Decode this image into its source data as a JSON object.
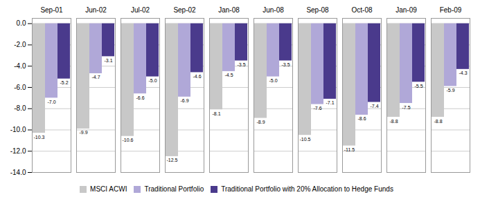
{
  "chart_data": {
    "type": "bar",
    "categories": [
      "Sep-01",
      "Jun-02",
      "Jul-02",
      "Sep-02",
      "Jan-08",
      "Jun-08",
      "Sep-08",
      "Oct-08",
      "Jan-09",
      "Feb-09"
    ],
    "series": [
      {
        "name": "MSCI ACWI",
        "color": "#c8c8c8",
        "values": [
          -10.3,
          -9.9,
          -10.6,
          -12.5,
          -8.1,
          -8.9,
          -10.5,
          -11.5,
          -8.8,
          -8.8
        ],
        "value_labels": [
          "-10.3",
          "-9.9",
          "-10.6",
          "-12.5",
          "-8.1",
          "-8.9",
          "-10.5",
          "-11.5",
          "-8.8",
          "-8.8"
        ]
      },
      {
        "name": "Traditional Portfolio",
        "color": "#b0a8d8",
        "values": [
          -7.0,
          -4.7,
          -6.6,
          -6.9,
          -4.5,
          -5.0,
          -7.6,
          -8.6,
          -7.5,
          -5.9
        ],
        "value_labels": [
          "-7.0",
          "-4.7",
          "-6.6",
          "-6.9",
          "-4.5",
          "-5.0",
          "-7.6",
          "-8.6",
          "-7.5",
          "-5.9"
        ]
      },
      {
        "name": "Traditional Portfolio with 20% Allocation to Hedge Funds",
        "color": "#4a3a8c",
        "values": [
          -5.2,
          -3.1,
          -5.0,
          -4.6,
          -3.5,
          -3.5,
          -7.1,
          -7.4,
          -5.5,
          -4.3
        ],
        "value_labels": [
          "-5.2",
          "-3.1",
          "-5.0",
          "-4.6",
          "-3.5",
          "-3.5",
          "-7.1",
          "-7.4",
          "-5.5",
          "-4.3"
        ]
      }
    ],
    "ylim": [
      -14.0,
      0.5
    ],
    "yticks": [
      {
        "value": 0.0,
        "label": "0.0"
      },
      {
        "value": -2.0,
        "label": "-2.0"
      },
      {
        "value": -4.0,
        "label": "-4.0"
      },
      {
        "value": -6.0,
        "label": "-6.0"
      },
      {
        "value": -8.0,
        "label": "-8.0"
      },
      {
        "value": -10.0,
        "label": "-10.0"
      },
      {
        "value": -12.0,
        "label": "-12.0"
      },
      {
        "value": -14.0,
        "label": "-14.0"
      }
    ],
    "grid": true,
    "data_labels": true,
    "legend": "bottom"
  }
}
